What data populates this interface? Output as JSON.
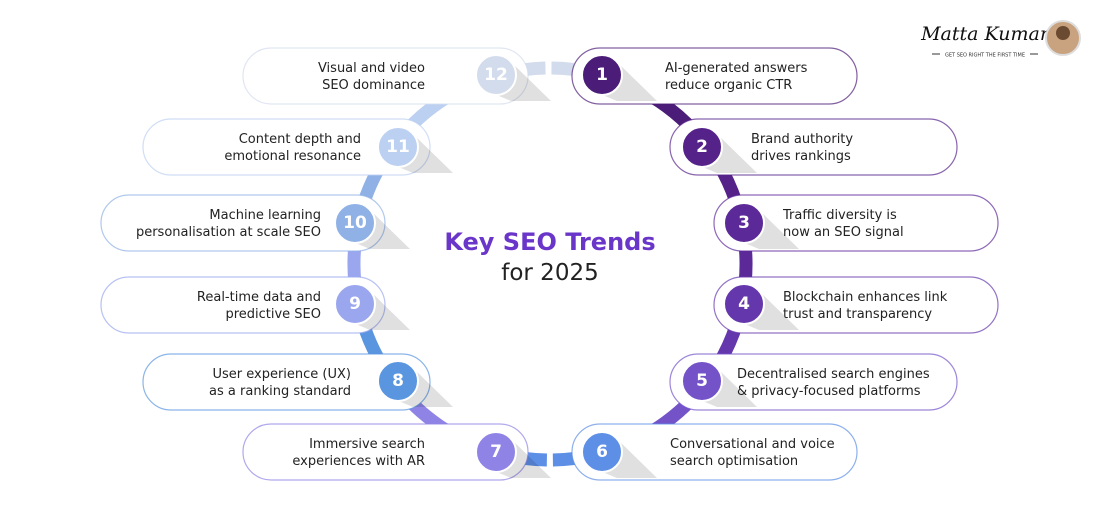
{
  "title": {
    "highlight": "Key SEO Trends",
    "rest": "for 2025"
  },
  "logo": {
    "name": "Matta Kumar",
    "tagline": "GET SEO RIGHT THE FIRST TIME"
  },
  "trends": [
    {
      "number": 1,
      "lines": [
        "AI-generated answers",
        "reduce organic CTR"
      ]
    },
    {
      "number": 2,
      "lines": [
        "Brand authority",
        "drives rankings"
      ]
    },
    {
      "number": 3,
      "lines": [
        "Traffic diversity is",
        "now an SEO signal"
      ]
    },
    {
      "number": 4,
      "lines": [
        "Blockchain enhances link",
        "trust and transparency"
      ]
    },
    {
      "number": 5,
      "lines": [
        "Decentralised search engines",
        "& privacy-focused platforms"
      ]
    },
    {
      "number": 6,
      "lines": [
        "Conversational and voice",
        "search optimisation"
      ]
    },
    {
      "number": 7,
      "lines": [
        "Immersive search",
        "experiences with AR"
      ]
    },
    {
      "number": 8,
      "lines": [
        "User experience (UX)",
        "as a ranking standard"
      ]
    },
    {
      "number": 9,
      "lines": [
        "Real-time data and",
        "predictive SEO"
      ]
    },
    {
      "number": 10,
      "lines": [
        "Machine learning",
        "personalisation at scale SEO"
      ]
    },
    {
      "number": 11,
      "lines": [
        "Content depth and",
        "emotional resonance"
      ]
    },
    {
      "number": 12,
      "lines": [
        "Visual and video",
        "SEO dominance"
      ]
    }
  ]
}
